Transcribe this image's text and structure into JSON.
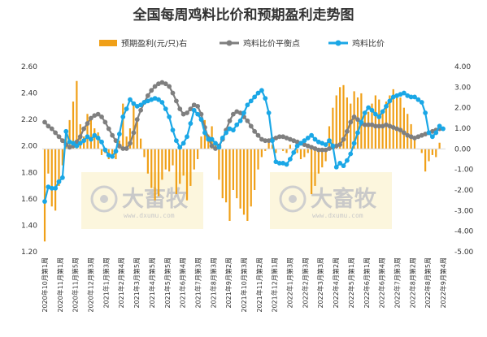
{
  "chart_data": {
    "type": "bar+line",
    "title": "全国每周鸡料比价和预期盈利走势图",
    "legend": [
      "预期盈利(元/只)右",
      "鸡料比价平衡点",
      "鸡料比价"
    ],
    "legend_position": "top",
    "grid": false,
    "colors": {
      "bars": "#f0a018",
      "balance": "#7f7f7f",
      "ratio": "#1aa7e6"
    },
    "y_left": {
      "min": 1.2,
      "max": 2.6,
      "ticks": [
        "1.20",
        "1.40",
        "1.60",
        "1.80",
        "2.00",
        "2.20",
        "2.40",
        "2.60"
      ]
    },
    "y_right": {
      "min": -5,
      "max": 4,
      "ticks": [
        "-5.00",
        "-4.00",
        "-3.00",
        "-2.00",
        "-1.00",
        "0.00",
        "1.00",
        "2.00",
        "3.00",
        "4.00"
      ]
    },
    "x_tick_labels": [
      "2020年10月第1周",
      "2020年11月第1周",
      "2020年11月第5周",
      "2020年12月第3周",
      "2021年1月第3周",
      "2021年2月第4周",
      "2021年3月第5周",
      "2021年4月第5周",
      "2021年5月第5周",
      "2021年6月第4周",
      "2021年7月第3周",
      "2021年8月第3周",
      "2021年9月第2周",
      "2021年10月第3周",
      "2021年11月第2周",
      "2021年12月第1周",
      "2022年1月第3周",
      "2022年2月第3周",
      "2022年3月第3周",
      "2022年4月第2周",
      "2022年5月第1周",
      "2022年6月第1周",
      "2022年6月第4周",
      "2022年7月第3周",
      "2022年8月第2周",
      "2022年8月第5周",
      "2022年9月第4周"
    ],
    "profit": [
      -4.5,
      -1.2,
      -2.8,
      -3.0,
      -1.8,
      -0.8,
      0.9,
      1.4,
      2.3,
      3.3,
      1.2,
      0.6,
      1.7,
      1.4,
      1.0,
      0.8,
      -0.3,
      -0.2,
      -0.5,
      -0.3,
      -0.5,
      0.4,
      2.2,
      0.6,
      1.0,
      2.3,
      1.4,
      0.5,
      -0.4,
      -1.2,
      -1.9,
      -2.5,
      -2.3,
      -1.5,
      -1.0,
      -1.1,
      -0.8,
      -2.2,
      -1.7,
      -1.3,
      -2.5,
      -1.8,
      -1.0,
      -0.5,
      0.6,
      1.4,
      0.7,
      1.1,
      0.3,
      -1.5,
      -2.4,
      -2.6,
      -3.5,
      -2.0,
      -2.4,
      -2.9,
      -3.2,
      -3.5,
      -2.8,
      -2.0,
      -1.0,
      -0.4,
      -0.1,
      0.3,
      0.2,
      -0.2,
      0.0,
      -0.1,
      -0.2,
      0.2,
      0.0,
      -0.2,
      -0.5,
      -0.4,
      -0.2,
      -2.2,
      -1.8,
      -1.2,
      -0.9,
      -0.6,
      1.1,
      2.0,
      2.6,
      3.0,
      3.1,
      2.5,
      2.2,
      2.8,
      2.5,
      2.7,
      1.7,
      1.8,
      2.2,
      2.6,
      2.4,
      1.9,
      2.3,
      2.6,
      2.9,
      2.5,
      2.5,
      2.0,
      1.7,
      1.2,
      0.5,
      0.0,
      -0.2,
      -1.1,
      -0.6,
      -0.3,
      -0.4,
      0.3
    ],
    "balance": [
      2.18,
      2.15,
      2.13,
      2.1,
      2.07,
      2.04,
      2.01,
      1.99,
      2.0,
      2.03,
      2.07,
      2.13,
      2.17,
      2.21,
      2.23,
      2.24,
      2.22,
      2.18,
      2.13,
      2.08,
      2.04,
      2.0,
      1.98,
      1.98,
      2.02,
      2.1,
      2.2,
      2.27,
      2.33,
      2.38,
      2.42,
      2.45,
      2.47,
      2.48,
      2.47,
      2.45,
      2.4,
      2.34,
      2.28,
      2.24,
      2.25,
      2.28,
      2.31,
      2.3,
      2.24,
      2.14,
      2.06,
      2.0,
      1.98,
      2.0,
      2.05,
      2.12,
      2.19,
      2.24,
      2.26,
      2.25,
      2.22,
      2.19,
      2.15,
      2.11,
      2.08,
      2.05,
      2.04,
      2.04,
      2.05,
      2.06,
      2.07,
      2.07,
      2.06,
      2.05,
      2.04,
      2.03,
      2.02,
      2.01,
      2.0,
      1.99,
      1.98,
      1.97,
      1.97,
      1.97,
      1.98,
      1.99,
      2.0,
      2.01,
      2.05,
      2.11,
      2.18,
      2.22,
      2.2,
      2.17,
      2.16,
      2.16,
      2.16,
      2.15,
      2.15,
      2.15,
      2.16,
      2.15,
      2.14,
      2.13,
      2.12,
      2.1,
      2.08,
      2.07,
      2.06,
      2.07,
      2.08,
      2.09,
      2.1,
      2.11,
      2.12,
      2.13
    ],
    "ratio": [
      1.58,
      1.69,
      1.68,
      1.68,
      1.73,
      1.76,
      2.11,
      2.03,
      2.02,
      2.0,
      2.02,
      2.04,
      2.07,
      2.05,
      2.08,
      2.06,
      2.03,
      1.97,
      1.93,
      1.92,
      1.96,
      2.09,
      2.22,
      2.28,
      2.35,
      2.32,
      2.3,
      2.31,
      2.33,
      2.34,
      2.35,
      2.36,
      2.35,
      2.33,
      2.28,
      2.22,
      2.12,
      2.04,
      1.99,
      2.02,
      2.07,
      2.17,
      2.27,
      2.24,
      2.2,
      2.1,
      2.05,
      2.05,
      2.02,
      1.99,
      2.06,
      2.1,
      2.13,
      2.12,
      2.16,
      2.19,
      2.25,
      2.31,
      2.34,
      2.37,
      2.4,
      2.42,
      2.36,
      2.25,
      2.04,
      1.88,
      1.87,
      1.87,
      1.86,
      1.9,
      1.95,
      2.0,
      2.02,
      2.04,
      2.06,
      2.08,
      2.05,
      2.03,
      2.02,
      2.01,
      2.04,
      2.0,
      1.84,
      1.87,
      1.85,
      1.89,
      1.94,
      2.02,
      2.1,
      2.18,
      2.25,
      2.29,
      2.27,
      2.24,
      2.22,
      2.26,
      2.3,
      2.34,
      2.37,
      2.38,
      2.39,
      2.4,
      2.38,
      2.37,
      2.37,
      2.35,
      2.33,
      2.25,
      2.1,
      2.07,
      2.1,
      2.15,
      2.13
    ],
    "watermark": {
      "brand": "大畜牧",
      "url": "www.dxumu.com"
    }
  }
}
